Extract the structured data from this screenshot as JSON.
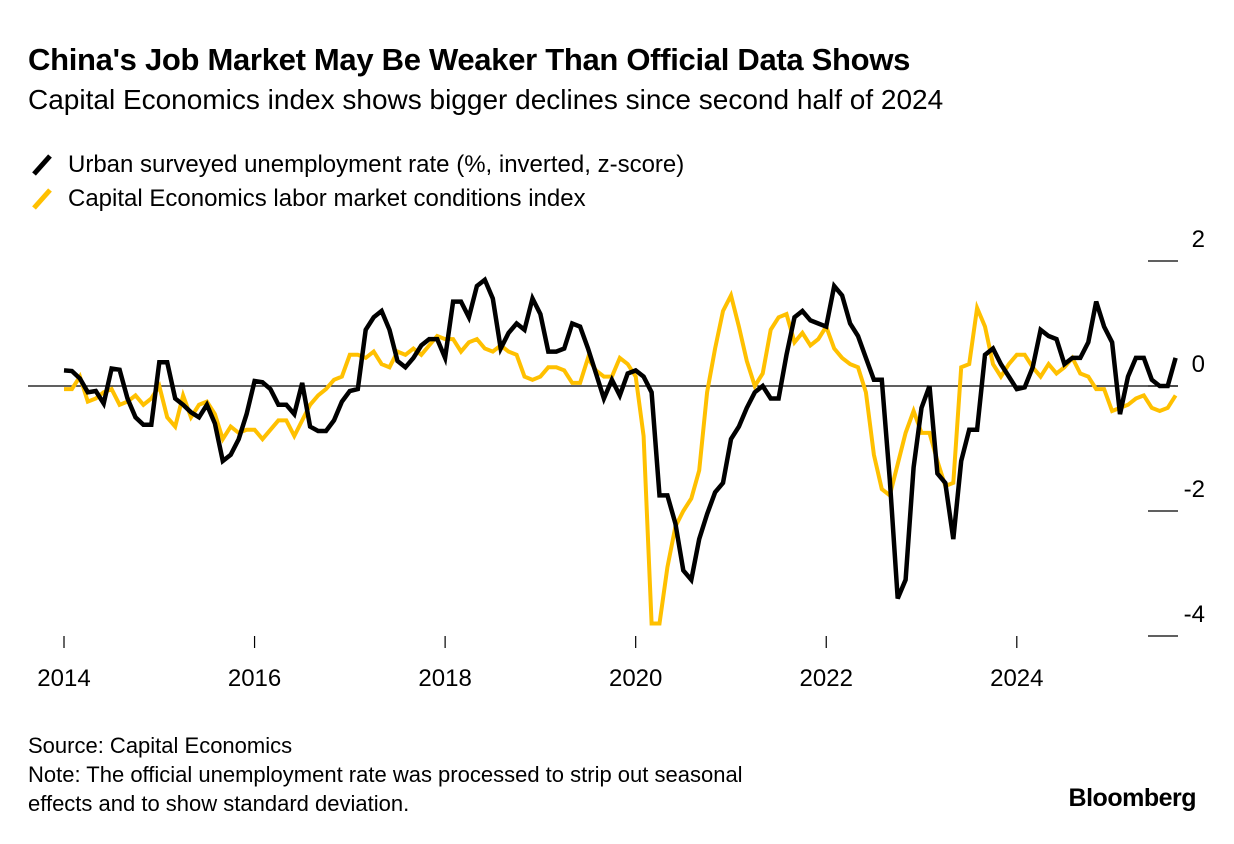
{
  "header": {
    "title": "China's Job Market May Be Weaker Than Official Data Shows",
    "subtitle": "Capital Economics index shows bigger declines since second half of 2024"
  },
  "legend": [
    {
      "label": "Urban surveyed unemployment rate (%, inverted, z-score)",
      "color": "#000000"
    },
    {
      "label": "Capital Economics labor market conditions index",
      "color": "#FFC000"
    }
  ],
  "footer": {
    "source": "Source: Capital Economics",
    "note_line1": "Note: The official unemployment rate was processed to strip out seasonal",
    "note_line2": "effects and to show standard deviation.",
    "brand": "Bloomberg"
  },
  "chart_data": {
    "type": "line",
    "title": "China's Job Market May Be Weaker Than Official Data Shows",
    "subtitle": "Capital Economics index shows bigger declines since second half of 2024",
    "xlabel": "",
    "ylabel": "",
    "x_start": "2014-01",
    "x_frequency": "monthly",
    "x_ticks": [
      "2014",
      "2016",
      "2018",
      "2020",
      "2022",
      "2024"
    ],
    "y_ticks": [
      2,
      0,
      -2,
      -4
    ],
    "ylim": [
      -4,
      2
    ],
    "xlim": [
      "2014-01",
      "2026-01"
    ],
    "y_axis_side": "right",
    "grid": false,
    "zero_line": true,
    "legend_position": "top-left",
    "series": [
      {
        "name": "Urban surveyed unemployment rate (%, inverted, z-score)",
        "color": "#000000",
        "values": [
          0.25,
          0.24,
          0.12,
          -0.1,
          -0.08,
          -0.28,
          0.28,
          0.26,
          -0.2,
          -0.5,
          -0.62,
          -0.62,
          0.38,
          0.38,
          -0.2,
          -0.3,
          -0.42,
          -0.5,
          -0.3,
          -0.6,
          -1.2,
          -1.1,
          -0.85,
          -0.45,
          0.08,
          0.06,
          -0.05,
          -0.3,
          -0.3,
          -0.45,
          0.05,
          -0.65,
          -0.72,
          -0.72,
          -0.55,
          -0.25,
          -0.08,
          -0.05,
          0.9,
          1.1,
          1.2,
          0.9,
          0.4,
          0.3,
          0.45,
          0.65,
          0.75,
          0.75,
          0.45,
          1.35,
          1.35,
          1.1,
          1.6,
          1.7,
          1.4,
          0.6,
          0.85,
          1.0,
          0.9,
          1.4,
          1.15,
          0.55,
          0.55,
          0.6,
          1.0,
          0.95,
          0.6,
          0.2,
          -0.2,
          0.1,
          -0.15,
          0.2,
          0.25,
          0.15,
          -0.1,
          -1.75,
          -1.75,
          -2.2,
          -2.95,
          -3.1,
          -2.45,
          -2.05,
          -1.7,
          -1.55,
          -0.85,
          -0.65,
          -0.35,
          -0.1,
          0.0,
          -0.2,
          -0.2,
          0.5,
          1.1,
          1.2,
          1.05,
          1.0,
          0.95,
          1.6,
          1.45,
          1.0,
          0.8,
          0.45,
          0.1,
          0.1,
          -1.5,
          -3.4,
          -3.1,
          -1.3,
          -0.35,
          0.0,
          -1.4,
          -1.55,
          -2.45,
          -1.2,
          -0.7,
          -0.7,
          0.5,
          0.6,
          0.35,
          0.15,
          -0.05,
          -0.02,
          0.3,
          0.9,
          0.8,
          0.75,
          0.35,
          0.45,
          0.45,
          0.7,
          1.35,
          0.95,
          0.7,
          -0.45,
          0.15,
          0.45,
          0.45,
          0.1,
          0.0,
          0.0,
          0.45
        ]
      },
      {
        "name": "Capital Economics labor market conditions index",
        "color": "#FFC000",
        "values": [
          -0.05,
          -0.05,
          0.15,
          -0.25,
          -0.2,
          -0.1,
          -0.05,
          -0.3,
          -0.25,
          -0.15,
          -0.3,
          -0.2,
          0.0,
          -0.5,
          -0.65,
          -0.15,
          -0.5,
          -0.3,
          -0.25,
          -0.45,
          -0.85,
          -0.65,
          -0.75,
          -0.7,
          -0.7,
          -0.85,
          -0.7,
          -0.55,
          -0.55,
          -0.8,
          -0.55,
          -0.3,
          -0.15,
          -0.05,
          0.1,
          0.15,
          0.5,
          0.5,
          0.45,
          0.55,
          0.35,
          0.3,
          0.55,
          0.5,
          0.6,
          0.5,
          0.65,
          0.8,
          0.75,
          0.75,
          0.55,
          0.7,
          0.75,
          0.6,
          0.55,
          0.65,
          0.55,
          0.5,
          0.15,
          0.1,
          0.15,
          0.3,
          0.3,
          0.25,
          0.05,
          0.05,
          0.45,
          0.25,
          0.15,
          0.15,
          0.45,
          0.35,
          0.15,
          -0.8,
          -3.8,
          -3.8,
          -2.9,
          -2.25,
          -2.0,
          -1.8,
          -1.35,
          -0.1,
          0.6,
          1.2,
          1.45,
          0.95,
          0.4,
          0.0,
          0.2,
          0.9,
          1.1,
          1.15,
          0.7,
          0.85,
          0.65,
          0.75,
          0.95,
          0.6,
          0.45,
          0.35,
          0.3,
          -0.1,
          -1.1,
          -1.65,
          -1.75,
          -1.25,
          -0.75,
          -0.4,
          -0.75,
          -0.75,
          -1.2,
          -1.6,
          -1.55,
          0.3,
          0.35,
          1.25,
          0.95,
          0.35,
          0.15,
          0.35,
          0.5,
          0.5,
          0.3,
          0.15,
          0.35,
          0.2,
          0.3,
          0.45,
          0.2,
          0.15,
          -0.05,
          -0.05,
          -0.4,
          -0.35,
          -0.3,
          -0.2,
          -0.15,
          -0.35,
          -0.4,
          -0.35,
          -0.15
        ]
      }
    ]
  }
}
